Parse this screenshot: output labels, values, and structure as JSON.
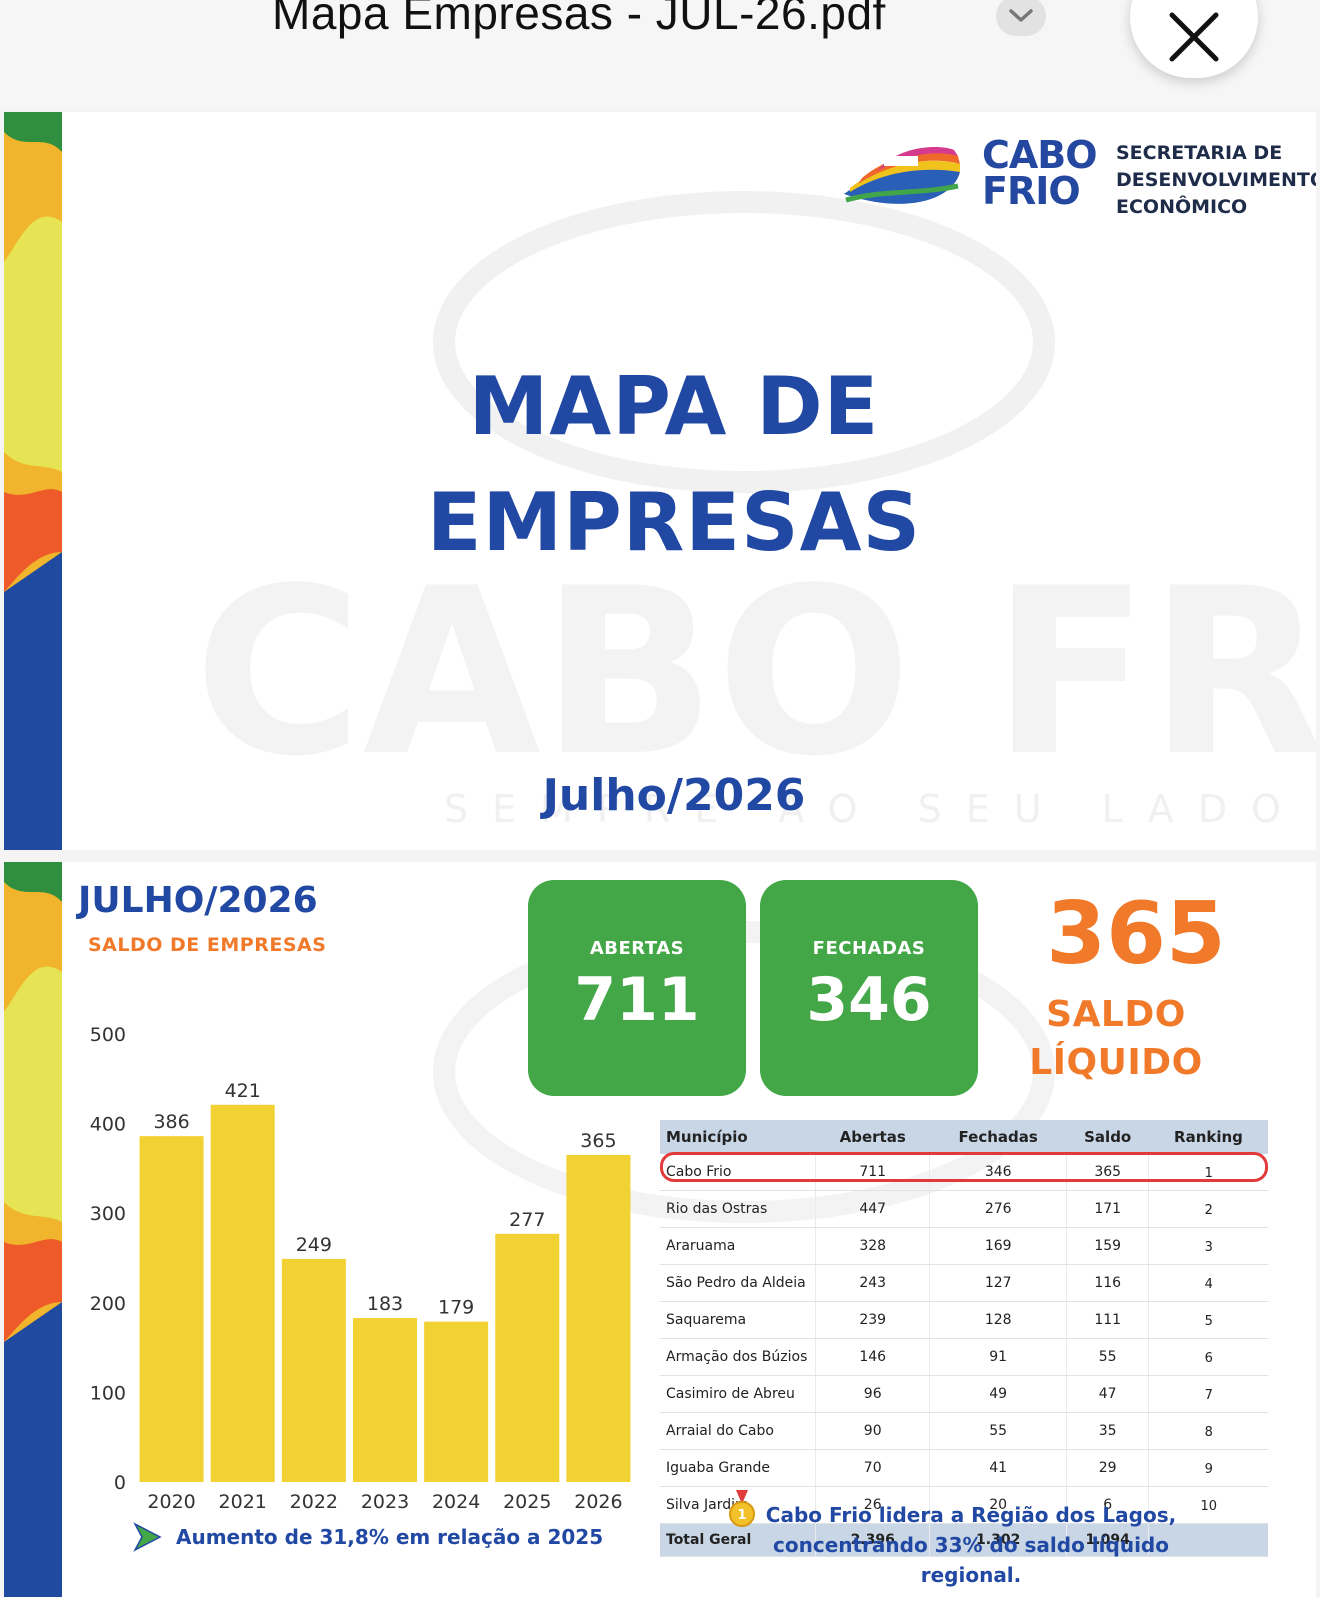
{
  "window": {
    "title": "Mapa Empresas - JUL-26.pdf",
    "menu_icon": "chevron-down-icon",
    "close_icon": "close-icon"
  },
  "page1": {
    "logo": {
      "line1": "CABO",
      "line2": "FRIO",
      "dept_line1": "SECRETARIA DE",
      "dept_line2": "DESENVOLVIMENTO",
      "dept_line3": "ECONÔMICO"
    },
    "title_line1": "MAPA DE",
    "title_line2": "EMPRESAS",
    "watermark_word": "CABO FRIO",
    "watermark_slogan": "SEMPRE AO SEU LADO",
    "subtitle": "Julho/2026"
  },
  "page2": {
    "heading": "JULHO/2026",
    "subheading": "SALDO DE EMPRESAS",
    "kpis": [
      {
        "label": "ABERTAS",
        "value": "711"
      },
      {
        "label": "FECHADAS",
        "value": "346"
      }
    ],
    "saldo": {
      "value": "365",
      "line1": "SALDO",
      "line2": "LÍQUIDO"
    },
    "table": {
      "headers": [
        "Município",
        "Abertas",
        "Fechadas",
        "Saldo",
        "Ranking"
      ],
      "rows": [
        [
          "Cabo Frio",
          "711",
          "346",
          "365",
          "1"
        ],
        [
          "Rio das Ostras",
          "447",
          "276",
          "171",
          "2"
        ],
        [
          "Araruama",
          "328",
          "169",
          "159",
          "3"
        ],
        [
          "São Pedro da Aldeia",
          "243",
          "127",
          "116",
          "4"
        ],
        [
          "Saquarema",
          "239",
          "128",
          "111",
          "5"
        ],
        [
          "Armação dos Búzios",
          "146",
          "91",
          "55",
          "6"
        ],
        [
          "Casimiro de Abreu",
          "96",
          "49",
          "47",
          "7"
        ],
        [
          "Arraial do Cabo",
          "90",
          "55",
          "35",
          "8"
        ],
        [
          "Iguaba Grande",
          "70",
          "41",
          "29",
          "9"
        ],
        [
          "Silva Jardim",
          "26",
          "20",
          "6",
          "10"
        ]
      ],
      "total": [
        "Total Geral",
        "2.396",
        "1.302",
        "1.094",
        ""
      ]
    },
    "footer_left": "Aumento de 31,8% em relação a 2025",
    "footer_left_icon": "arrow-right-icon",
    "footer_right_line1": "Cabo Frio lidera a Região dos Lagos,",
    "footer_right_line2": "concentrando 33% do saldo líquido regional.",
    "footer_right_icon": "medal-icon",
    "colors": {
      "blue": "#2148a3",
      "orange": "#f07a2a",
      "green": "#43a647",
      "bar": "#f2d233"
    }
  },
  "chart_data": {
    "type": "bar",
    "title": "",
    "xlabel": "",
    "ylabel": "",
    "categories": [
      "2020",
      "2021",
      "2022",
      "2023",
      "2024",
      "2025",
      "2026"
    ],
    "values": [
      386,
      421,
      249,
      183,
      179,
      277,
      365
    ],
    "data_labels": [
      "386",
      "421",
      "249",
      "183",
      "179",
      "277",
      "365"
    ],
    "ylim": [
      0,
      500
    ],
    "yticks": [
      0,
      100,
      200,
      300,
      400,
      500
    ],
    "grid": false,
    "legend": "none"
  }
}
